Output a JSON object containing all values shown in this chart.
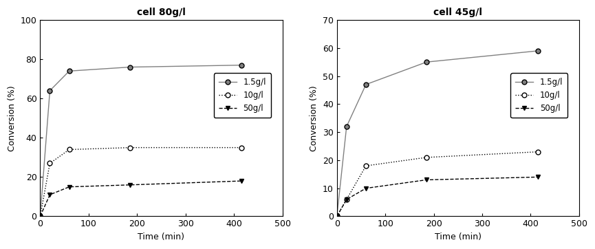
{
  "left": {
    "title": "cell 80g/l",
    "xlabel": "Time (min)",
    "ylabel": "Conversion (%)",
    "ylim": [
      0,
      100
    ],
    "xlim": [
      0,
      500
    ],
    "yticks": [
      0,
      20,
      40,
      60,
      80,
      100
    ],
    "xticks": [
      0,
      100,
      200,
      300,
      400,
      500
    ],
    "series": [
      {
        "label": "1.5g/l",
        "x": [
          0,
          20,
          60,
          185,
          415
        ],
        "y": [
          0,
          64,
          74,
          76,
          77
        ],
        "linestyle": "-",
        "marker": "o",
        "markerfacecolor": "#808080",
        "color": "#808080"
      },
      {
        "label": "10g/l",
        "x": [
          0,
          20,
          60,
          185,
          415
        ],
        "y": [
          0,
          27,
          34,
          35,
          35
        ],
        "linestyle": ":",
        "marker": "o",
        "markerfacecolor": "white",
        "color": "black"
      },
      {
        "label": "50g/l",
        "x": [
          0,
          20,
          60,
          185,
          415
        ],
        "y": [
          0,
          11,
          15,
          16,
          18
        ],
        "linestyle": "--",
        "marker": "v",
        "markerfacecolor": "black",
        "color": "black"
      }
    ]
  },
  "right": {
    "title": "cell 45g/l",
    "xlabel": "Time (min)",
    "ylabel": "Conversion (%)",
    "ylim": [
      0,
      70
    ],
    "xlim": [
      0,
      500
    ],
    "yticks": [
      0,
      10,
      20,
      30,
      40,
      50,
      60,
      70
    ],
    "xticks": [
      0,
      100,
      200,
      300,
      400,
      500
    ],
    "series": [
      {
        "label": "1.5g/l",
        "x": [
          0,
          20,
          60,
          185,
          415
        ],
        "y": [
          0,
          32,
          47,
          55,
          59
        ],
        "linestyle": "-",
        "marker": "o",
        "markerfacecolor": "#808080",
        "color": "#808080"
      },
      {
        "label": "10g/l",
        "x": [
          0,
          20,
          60,
          185,
          415
        ],
        "y": [
          0,
          6,
          18,
          21,
          23
        ],
        "linestyle": ":",
        "marker": "o",
        "markerfacecolor": "white",
        "color": "black"
      },
      {
        "label": "50g/l",
        "x": [
          0,
          20,
          60,
          185,
          415
        ],
        "y": [
          0,
          6,
          10,
          13,
          14
        ],
        "linestyle": "--",
        "marker": "v",
        "markerfacecolor": "black",
        "color": "black"
      }
    ]
  },
  "background_color": "#ffffff",
  "title_fontsize": 10,
  "label_fontsize": 9,
  "tick_fontsize": 9,
  "legend_fontsize": 8.5
}
